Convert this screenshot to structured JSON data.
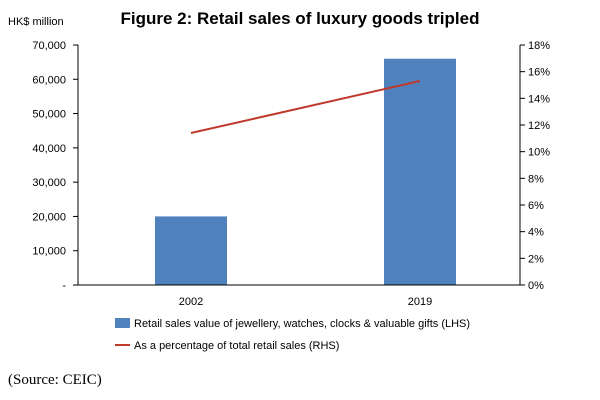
{
  "chart_data": {
    "type": "bar",
    "title": "Figure 2: Retail sales of luxury goods tripled",
    "y_unit_label": "HK$ million",
    "categories": [
      "2002",
      "2019"
    ],
    "series": [
      {
        "name": "Retail sales value of jewellery, watches, clocks & valuable gifts (LHS)",
        "kind": "bar",
        "axis": "left",
        "color": "#4f81bd",
        "values": [
          20000,
          66000
        ]
      },
      {
        "name": "As a percentage of total retail sales (RHS)",
        "kind": "line",
        "axis": "right",
        "color": "#c0392b",
        "values": [
          11.4,
          15.3
        ]
      }
    ],
    "y_left": {
      "range": [
        0,
        70000
      ],
      "tick_values": [
        0,
        10000,
        20000,
        30000,
        40000,
        50000,
        60000,
        70000
      ],
      "tick_labels": [
        "-",
        "10,000",
        "20,000",
        "30,000",
        "40,000",
        "50,000",
        "60,000",
        "70,000"
      ]
    },
    "y_right": {
      "range": [
        0,
        18
      ],
      "tick_values": [
        0,
        2,
        4,
        6,
        8,
        10,
        12,
        14,
        16,
        18
      ],
      "tick_labels": [
        "0%",
        "2%",
        "4%",
        "6%",
        "8%",
        "10%",
        "12%",
        "14%",
        "16%",
        "18%"
      ]
    },
    "grid": false,
    "legend_position": "bottom"
  },
  "source_note": "(Source: CEIC)"
}
